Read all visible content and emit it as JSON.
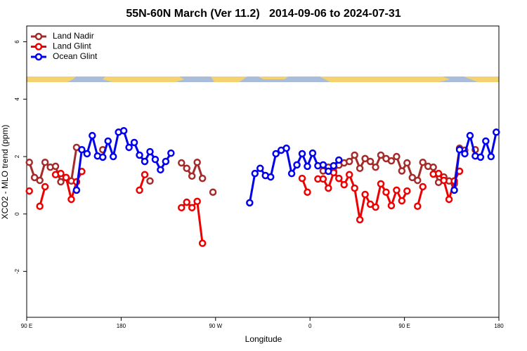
{
  "chart_data": {
    "type": "line",
    "title": "55N-60N March (Ver 11.2)   2014-09-06 to 2024-07-31",
    "x_label": "Longitude",
    "y_label": "XCO2 - MLO trend (ppm)",
    "xlim": [
      90,
      540
    ],
    "ylim": [
      -3.6,
      6.55
    ],
    "xticks": [
      {
        "value": 90,
        "label": "90 E"
      },
      180,
      {
        "value": 270,
        "label": "90 W"
      },
      {
        "value": 360,
        "label": "0"
      },
      {
        "value": 450,
        "label": "90 E"
      },
      {
        "value": 540,
        "label": "180"
      }
    ],
    "yticks": [
      -2,
      0,
      2,
      4,
      6
    ],
    "legend": "top-left",
    "x": [
      92.5,
      97.5,
      102.5,
      107.5,
      112.5,
      117.5,
      122.5,
      127.5,
      132.5,
      137.5,
      142.5,
      147.5,
      152.5,
      157.5,
      162.5,
      167.5,
      172.5,
      177.5,
      182.5,
      187.5,
      192.5,
      197.5,
      202.5,
      207.5,
      212.5,
      217.5,
      222.5,
      227.5,
      232.5,
      237.5,
      242.5,
      247.5,
      252.5,
      257.5,
      262.5,
      267.5,
      272.5,
      277.5,
      282.5,
      287.5,
      292.5,
      297.5,
      302.5,
      307.5,
      312.5,
      317.5,
      322.5,
      327.5,
      332.5,
      337.5,
      342.5,
      347.5,
      352.5,
      357.5,
      362.5,
      367.5,
      372.5,
      377.5,
      382.5,
      387.5,
      392.5,
      397.5,
      402.5,
      407.5,
      412.5,
      417.5,
      422.5,
      427.5,
      432.5,
      437.5,
      442.5,
      447.5,
      452.5,
      457.5,
      462.5,
      467.5,
      472.5,
      477.5,
      482.5,
      487.5,
      492.5,
      497.5,
      502.5,
      507.5,
      512.5,
      517.5,
      522.5,
      527.5,
      532.5,
      537.5
    ],
    "series": [
      {
        "name": "Land Nadir",
        "color": "#a52a2a",
        "values": [
          1.8,
          1.27,
          1.17,
          1.8,
          1.63,
          1.66,
          1.12,
          1.27,
          1.15,
          2.32,
          null,
          null,
          null,
          null,
          2.24,
          null,
          null,
          null,
          null,
          null,
          null,
          null,
          null,
          1.15,
          null,
          null,
          null,
          null,
          null,
          1.78,
          1.59,
          1.32,
          1.8,
          1.24,
          null,
          0.76,
          null,
          null,
          null,
          null,
          null,
          null,
          null,
          null,
          null,
          null,
          null,
          null,
          null,
          null,
          null,
          null,
          null,
          null,
          null,
          null,
          1.5,
          1.63,
          1.48,
          1.7,
          1.78,
          1.83,
          2.05,
          1.59,
          1.93,
          1.83,
          1.63,
          2.05,
          1.93,
          1.85,
          2.0,
          1.5,
          1.78,
          1.27,
          1.17,
          1.8,
          1.66,
          1.63,
          1.1,
          1.29,
          1.15,
          1.05,
          2.29,
          2.22,
          null,
          2.24,
          null,
          null,
          null,
          null
        ]
      },
      {
        "name": "Land Glint",
        "color": "#ee0000",
        "values": [
          0.8,
          null,
          0.27,
          0.95,
          null,
          1.37,
          1.41,
          1.27,
          0.51,
          1.12,
          1.48,
          null,
          null,
          null,
          null,
          null,
          null,
          null,
          null,
          null,
          null,
          0.83,
          1.37,
          null,
          null,
          null,
          null,
          null,
          null,
          0.22,
          0.41,
          0.22,
          0.44,
          -1.02,
          null,
          null,
          null,
          null,
          null,
          null,
          null,
          null,
          null,
          null,
          null,
          null,
          null,
          null,
          null,
          null,
          null,
          null,
          1.24,
          0.76,
          null,
          1.22,
          1.22,
          0.9,
          1.44,
          1.24,
          1.02,
          1.37,
          0.9,
          -0.2,
          0.68,
          0.34,
          0.24,
          1.05,
          0.76,
          0.29,
          0.83,
          0.46,
          0.8,
          null,
          0.27,
          0.95,
          null,
          1.39,
          1.41,
          1.17,
          0.51,
          1.15,
          1.49,
          null,
          null,
          null,
          null,
          null,
          null,
          null
        ]
      },
      {
        "name": "Ocean Glint",
        "color": "#0000ee",
        "values": [
          null,
          null,
          null,
          null,
          null,
          null,
          null,
          null,
          null,
          0.83,
          2.24,
          2.1,
          2.73,
          2.02,
          1.98,
          2.54,
          2.0,
          2.85,
          2.9,
          2.32,
          2.49,
          2.05,
          1.83,
          2.17,
          1.9,
          1.54,
          1.83,
          2.12,
          null,
          null,
          null,
          null,
          null,
          null,
          null,
          null,
          null,
          null,
          null,
          null,
          null,
          null,
          0.39,
          1.41,
          1.59,
          1.34,
          1.29,
          2.1,
          2.22,
          2.29,
          1.41,
          1.71,
          2.1,
          1.66,
          2.12,
          1.68,
          1.71,
          1.49,
          1.68,
          1.88,
          null,
          null,
          null,
          null,
          null,
          null,
          null,
          null,
          null,
          null,
          null,
          null,
          null,
          null,
          null,
          null,
          null,
          null,
          null,
          null,
          null,
          0.83,
          2.24,
          2.1,
          2.73,
          2.02,
          1.98,
          2.54,
          2.0,
          2.85
        ]
      }
    ]
  }
}
